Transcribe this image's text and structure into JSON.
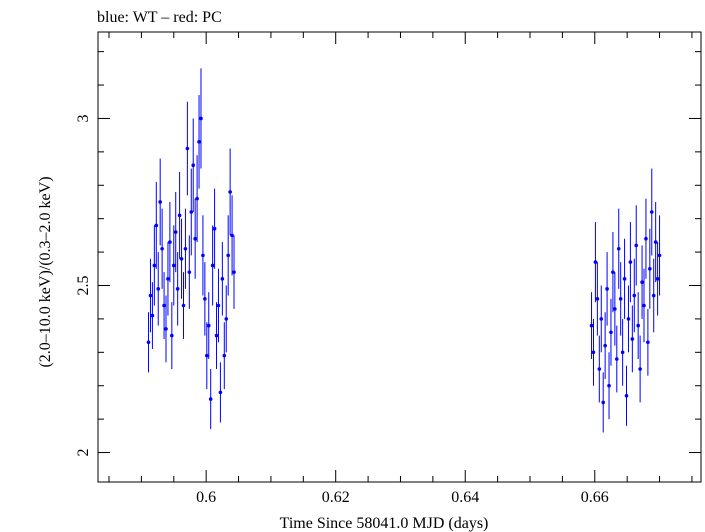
{
  "chart_data": {
    "type": "scatter",
    "title": "blue: WT – red: PC",
    "xlabel": "Time Since 58041.0 MJD (days)",
    "ylabel": "(2.0–10.0 keV)/(0.3–2.0 keV)",
    "xlim": [
      0.5833,
      0.6764
    ],
    "ylim": [
      1.9118,
      3.2588
    ],
    "xticks": [
      0.6,
      0.62,
      0.64,
      0.66
    ],
    "xtick_labels": [
      "0.6",
      "0.62",
      "0.64",
      "0.66"
    ],
    "yticks": [
      2,
      2.5,
      3
    ],
    "ytick_labels": [
      "2",
      "2.5",
      "3"
    ],
    "grid": false,
    "series": [
      {
        "color": "#0000ff",
        "marker": "point-with-errorbars",
        "points": [
          {
            "x": 0.5911,
            "y": 2.33,
            "err": 0.09
          },
          {
            "x": 0.5914,
            "y": 2.47,
            "err": 0.11
          },
          {
            "x": 0.5917,
            "y": 2.41,
            "err": 0.1
          },
          {
            "x": 0.592,
            "y": 2.56,
            "err": 0.12
          },
          {
            "x": 0.5923,
            "y": 2.68,
            "err": 0.13
          },
          {
            "x": 0.5926,
            "y": 2.49,
            "err": 0.11
          },
          {
            "x": 0.5929,
            "y": 2.75,
            "err": 0.13
          },
          {
            "x": 0.5932,
            "y": 2.61,
            "err": 0.12
          },
          {
            "x": 0.5935,
            "y": 2.44,
            "err": 0.1
          },
          {
            "x": 0.5938,
            "y": 2.37,
            "err": 0.1
          },
          {
            "x": 0.5941,
            "y": 2.52,
            "err": 0.11
          },
          {
            "x": 0.5944,
            "y": 2.63,
            "err": 0.12
          },
          {
            "x": 0.5947,
            "y": 2.35,
            "err": 0.1
          },
          {
            "x": 0.595,
            "y": 2.56,
            "err": 0.12
          },
          {
            "x": 0.5953,
            "y": 2.66,
            "err": 0.12
          },
          {
            "x": 0.5956,
            "y": 2.49,
            "err": 0.11
          },
          {
            "x": 0.5959,
            "y": 2.71,
            "err": 0.13
          },
          {
            "x": 0.5962,
            "y": 2.58,
            "err": 0.12
          },
          {
            "x": 0.5965,
            "y": 2.44,
            "err": 0.1
          },
          {
            "x": 0.5968,
            "y": 2.61,
            "err": 0.12
          },
          {
            "x": 0.5971,
            "y": 2.91,
            "err": 0.14
          },
          {
            "x": 0.5974,
            "y": 2.54,
            "err": 0.11
          },
          {
            "x": 0.5977,
            "y": 2.72,
            "err": 0.13
          },
          {
            "x": 0.598,
            "y": 2.86,
            "err": 0.14
          },
          {
            "x": 0.5983,
            "y": 2.64,
            "err": 0.12
          },
          {
            "x": 0.5986,
            "y": 2.76,
            "err": 0.13
          },
          {
            "x": 0.5989,
            "y": 2.93,
            "err": 0.14
          },
          {
            "x": 0.5992,
            "y": 3.0,
            "err": 0.15
          },
          {
            "x": 0.5995,
            "y": 2.59,
            "err": 0.12
          },
          {
            "x": 0.5998,
            "y": 2.46,
            "err": 0.11
          },
          {
            "x": 0.6001,
            "y": 2.29,
            "err": 0.1
          },
          {
            "x": 0.6004,
            "y": 2.38,
            "err": 0.1
          },
          {
            "x": 0.6007,
            "y": 2.16,
            "err": 0.09
          },
          {
            "x": 0.601,
            "y": 2.56,
            "err": 0.12
          },
          {
            "x": 0.6013,
            "y": 2.67,
            "err": 0.12
          },
          {
            "x": 0.6016,
            "y": 2.35,
            "err": 0.1
          },
          {
            "x": 0.6019,
            "y": 2.44,
            "err": 0.11
          },
          {
            "x": 0.6022,
            "y": 2.18,
            "err": 0.09
          },
          {
            "x": 0.6025,
            "y": 2.52,
            "err": 0.11
          },
          {
            "x": 0.6028,
            "y": 2.29,
            "err": 0.1
          },
          {
            "x": 0.6031,
            "y": 2.4,
            "err": 0.1
          },
          {
            "x": 0.6034,
            "y": 2.59,
            "err": 0.12
          },
          {
            "x": 0.6037,
            "y": 2.78,
            "err": 0.13
          },
          {
            "x": 0.604,
            "y": 2.65,
            "err": 0.12
          },
          {
            "x": 0.6043,
            "y": 2.54,
            "err": 0.11
          },
          {
            "x": 0.6595,
            "y": 2.38,
            "err": 0.1
          },
          {
            "x": 0.6598,
            "y": 2.3,
            "err": 0.1
          },
          {
            "x": 0.6601,
            "y": 2.57,
            "err": 0.12
          },
          {
            "x": 0.6604,
            "y": 2.46,
            "err": 0.11
          },
          {
            "x": 0.6607,
            "y": 2.25,
            "err": 0.1
          },
          {
            "x": 0.661,
            "y": 2.4,
            "err": 0.1
          },
          {
            "x": 0.6613,
            "y": 2.15,
            "err": 0.09
          },
          {
            "x": 0.6616,
            "y": 2.32,
            "err": 0.1
          },
          {
            "x": 0.6619,
            "y": 2.49,
            "err": 0.11
          },
          {
            "x": 0.6622,
            "y": 2.2,
            "err": 0.1
          },
          {
            "x": 0.6625,
            "y": 2.36,
            "err": 0.1
          },
          {
            "x": 0.6628,
            "y": 2.54,
            "err": 0.12
          },
          {
            "x": 0.6631,
            "y": 2.43,
            "err": 0.11
          },
          {
            "x": 0.6634,
            "y": 2.28,
            "err": 0.1
          },
          {
            "x": 0.6637,
            "y": 2.61,
            "err": 0.12
          },
          {
            "x": 0.664,
            "y": 2.46,
            "err": 0.11
          },
          {
            "x": 0.6643,
            "y": 2.3,
            "err": 0.1
          },
          {
            "x": 0.6646,
            "y": 2.52,
            "err": 0.12
          },
          {
            "x": 0.6649,
            "y": 2.17,
            "err": 0.09
          },
          {
            "x": 0.6652,
            "y": 2.4,
            "err": 0.1
          },
          {
            "x": 0.6655,
            "y": 2.57,
            "err": 0.12
          },
          {
            "x": 0.6658,
            "y": 2.34,
            "err": 0.1
          },
          {
            "x": 0.6661,
            "y": 2.47,
            "err": 0.11
          },
          {
            "x": 0.6664,
            "y": 2.62,
            "err": 0.12
          },
          {
            "x": 0.6667,
            "y": 2.38,
            "err": 0.1
          },
          {
            "x": 0.667,
            "y": 2.25,
            "err": 0.1
          },
          {
            "x": 0.6673,
            "y": 2.51,
            "err": 0.11
          },
          {
            "x": 0.6676,
            "y": 2.44,
            "err": 0.11
          },
          {
            "x": 0.6679,
            "y": 2.64,
            "err": 0.12
          },
          {
            "x": 0.6682,
            "y": 2.33,
            "err": 0.1
          },
          {
            "x": 0.6685,
            "y": 2.55,
            "err": 0.12
          },
          {
            "x": 0.6688,
            "y": 2.72,
            "err": 0.13
          },
          {
            "x": 0.6691,
            "y": 2.47,
            "err": 0.11
          },
          {
            "x": 0.6694,
            "y": 2.63,
            "err": 0.12
          },
          {
            "x": 0.6697,
            "y": 2.52,
            "err": 0.11
          },
          {
            "x": 0.67,
            "y": 2.59,
            "err": 0.12
          }
        ]
      }
    ]
  }
}
